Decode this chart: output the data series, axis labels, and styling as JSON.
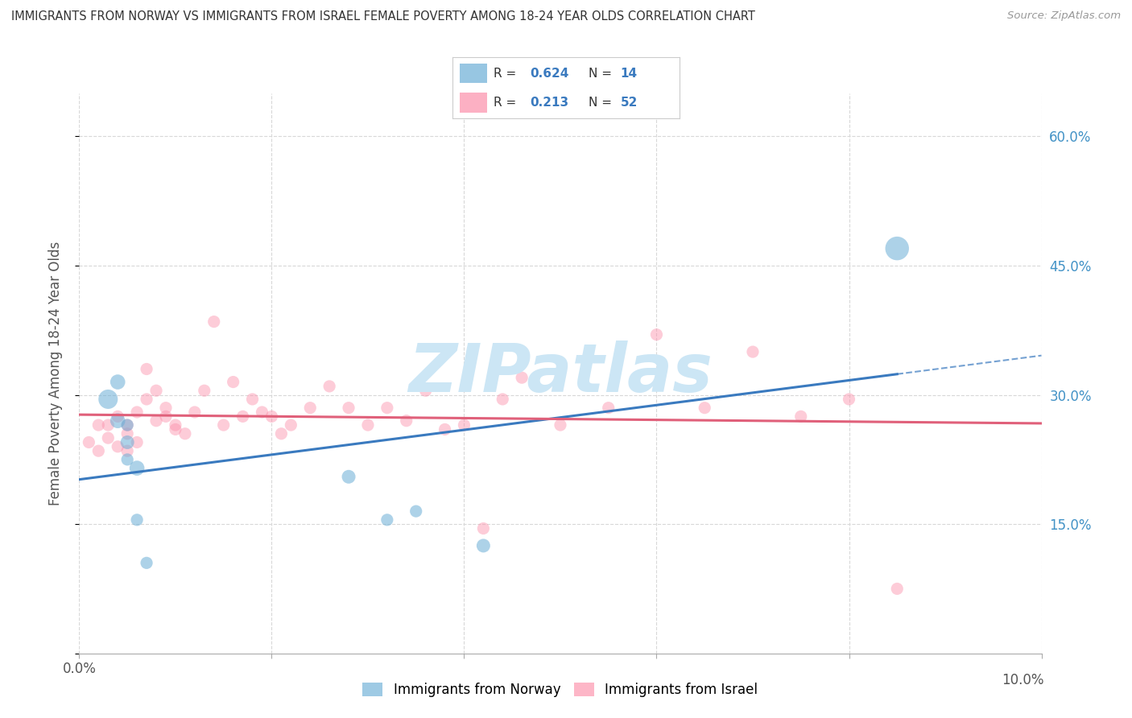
{
  "title": "IMMIGRANTS FROM NORWAY VS IMMIGRANTS FROM ISRAEL FEMALE POVERTY AMONG 18-24 YEAR OLDS CORRELATION CHART",
  "source": "Source: ZipAtlas.com",
  "ylabel": "Female Poverty Among 18-24 Year Olds",
  "xlim": [
    0.0,
    0.1
  ],
  "ylim": [
    0.0,
    0.65
  ],
  "x_ticks": [
    0.0,
    0.02,
    0.04,
    0.06,
    0.08,
    0.1
  ],
  "y_ticks": [
    0.0,
    0.15,
    0.3,
    0.45,
    0.6
  ],
  "norway_R": 0.624,
  "norway_N": 14,
  "israel_R": 0.213,
  "israel_N": 52,
  "norway_color": "#6baed6",
  "israel_color": "#fc8faa",
  "norway_line_color": "#3a7abf",
  "israel_line_color": "#e0607a",
  "norway_scatter_x": [
    0.003,
    0.004,
    0.004,
    0.005,
    0.005,
    0.005,
    0.006,
    0.006,
    0.007,
    0.028,
    0.032,
    0.035,
    0.042,
    0.085
  ],
  "norway_scatter_y": [
    0.295,
    0.27,
    0.315,
    0.245,
    0.265,
    0.225,
    0.215,
    0.155,
    0.105,
    0.205,
    0.155,
    0.165,
    0.125,
    0.47
  ],
  "norway_bubble_size": [
    200,
    120,
    120,
    100,
    80,
    80,
    120,
    80,
    80,
    100,
    80,
    80,
    100,
    300
  ],
  "israel_scatter_x": [
    0.001,
    0.002,
    0.002,
    0.003,
    0.003,
    0.004,
    0.004,
    0.005,
    0.005,
    0.005,
    0.006,
    0.006,
    0.007,
    0.007,
    0.008,
    0.008,
    0.009,
    0.009,
    0.01,
    0.01,
    0.011,
    0.012,
    0.013,
    0.014,
    0.015,
    0.016,
    0.017,
    0.018,
    0.019,
    0.02,
    0.021,
    0.022,
    0.024,
    0.026,
    0.028,
    0.03,
    0.032,
    0.034,
    0.036,
    0.038,
    0.04,
    0.042,
    0.044,
    0.046,
    0.05,
    0.055,
    0.06,
    0.065,
    0.07,
    0.075,
    0.08,
    0.085
  ],
  "israel_scatter_y": [
    0.245,
    0.235,
    0.265,
    0.25,
    0.265,
    0.24,
    0.275,
    0.235,
    0.255,
    0.265,
    0.245,
    0.28,
    0.295,
    0.33,
    0.27,
    0.305,
    0.275,
    0.285,
    0.26,
    0.265,
    0.255,
    0.28,
    0.305,
    0.385,
    0.265,
    0.315,
    0.275,
    0.295,
    0.28,
    0.275,
    0.255,
    0.265,
    0.285,
    0.31,
    0.285,
    0.265,
    0.285,
    0.27,
    0.305,
    0.26,
    0.265,
    0.145,
    0.295,
    0.32,
    0.265,
    0.285,
    0.37,
    0.285,
    0.35,
    0.275,
    0.295,
    0.075
  ],
  "israel_bubble_size": [
    80,
    80,
    80,
    80,
    80,
    80,
    80,
    80,
    80,
    80,
    80,
    80,
    80,
    80,
    80,
    80,
    80,
    80,
    80,
    80,
    80,
    80,
    80,
    80,
    80,
    80,
    80,
    80,
    80,
    80,
    80,
    80,
    80,
    80,
    80,
    80,
    80,
    80,
    80,
    80,
    80,
    80,
    80,
    80,
    80,
    80,
    80,
    80,
    80,
    80,
    80,
    80
  ],
  "norway_line_x_start": 0.0,
  "norway_line_x_solid_end": 0.085,
  "norway_line_x_dash_end": 0.1,
  "watermark_text": "ZIPatlas",
  "watermark_color": "#cce6f5",
  "background_color": "#ffffff",
  "grid_color": "#d8d8d8"
}
